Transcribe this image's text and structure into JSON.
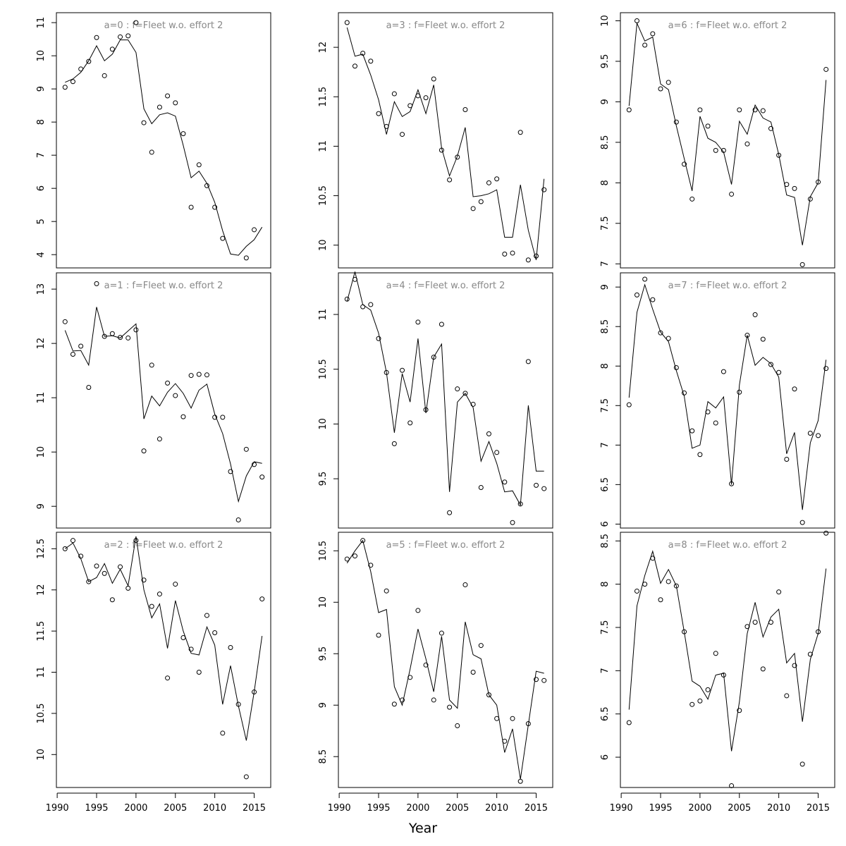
{
  "figure": {
    "xlabel": "Year"
  },
  "chart_data": [
    {
      "type": "scatter",
      "title": "a=0  :  f=Fleet w.o. effort 2",
      "x": [
        1991,
        1992,
        1993,
        1994,
        1995,
        1996,
        1997,
        1998,
        1999,
        2000,
        2001,
        2002,
        2003,
        2004,
        2005,
        2006,
        2007,
        2008,
        2009,
        2010,
        2011,
        2012,
        2013,
        2014,
        2015,
        2016
      ],
      "series": [
        {
          "values": [
            9.05,
            9.22,
            9.6,
            9.83,
            10.55,
            9.4,
            10.2,
            10.57,
            10.6,
            11.0,
            7.98,
            7.09,
            8.45,
            8.79,
            8.58,
            7.65,
            5.43,
            6.71,
            6.08,
            5.43,
            4.49,
            null,
            null,
            3.9,
            4.75,
            null
          ]
        },
        {
          "values": [
            9.2,
            9.3,
            9.5,
            9.85,
            10.3,
            9.85,
            10.05,
            10.48,
            10.48,
            10.1,
            8.4,
            7.95,
            8.22,
            8.28,
            8.18,
            7.3,
            6.32,
            6.52,
            6.15,
            5.58,
            4.72,
            4.02,
            3.98,
            4.25,
            4.45,
            4.83
          ]
        }
      ],
      "ylim": [
        3.6,
        11.3
      ],
      "yticks": [
        4,
        5,
        6,
        7,
        8,
        9,
        10,
        11
      ],
      "xticks": []
    },
    {
      "type": "scatter",
      "title": "a=1  :  f=Fleet w.o. effort 2",
      "x": [
        1991,
        1992,
        1993,
        1994,
        1995,
        1996,
        1997,
        1998,
        1999,
        2000,
        2001,
        2002,
        2003,
        2004,
        2005,
        2006,
        2007,
        2008,
        2009,
        2010,
        2011,
        2012,
        2013,
        2014,
        2015,
        2016
      ],
      "series": [
        {
          "values": [
            12.4,
            11.8,
            11.95,
            11.19,
            13.1,
            12.13,
            12.18,
            12.11,
            12.1,
            12.25,
            10.02,
            11.6,
            10.24,
            11.27,
            11.04,
            10.65,
            11.41,
            11.43,
            11.42,
            10.64,
            10.64,
            9.64,
            8.75,
            10.05,
            9.77,
            9.54
          ]
        },
        {
          "values": [
            12.24,
            11.86,
            11.87,
            11.6,
            12.67,
            12.13,
            12.14,
            12.1,
            12.23,
            12.36,
            10.61,
            11.03,
            10.85,
            11.1,
            11.26,
            11.08,
            10.81,
            11.14,
            11.25,
            10.7,
            10.34,
            9.78,
            9.09,
            9.56,
            9.82,
            9.79
          ]
        }
      ],
      "ylim": [
        8.6,
        13.3
      ],
      "yticks": [
        9,
        10,
        11,
        12,
        13
      ],
      "xticks": []
    },
    {
      "type": "scatter",
      "title": "a=2  :  f=Fleet w.o. effort 2",
      "x": [
        1991,
        1992,
        1993,
        1994,
        1995,
        1996,
        1997,
        1998,
        1999,
        2000,
        2001,
        2002,
        2003,
        2004,
        2005,
        2006,
        2007,
        2008,
        2009,
        2010,
        2011,
        2012,
        2013,
        2014,
        2015,
        2016
      ],
      "series": [
        {
          "values": [
            12.5,
            12.6,
            12.41,
            12.1,
            12.29,
            12.2,
            11.88,
            12.28,
            12.02,
            12.6,
            12.12,
            11.8,
            11.95,
            10.93,
            12.07,
            11.42,
            11.28,
            11.0,
            11.69,
            11.48,
            10.26,
            11.3,
            10.61,
            9.73,
            10.76,
            11.89
          ]
        },
        {
          "values": [
            12.5,
            12.57,
            12.38,
            12.1,
            12.15,
            12.32,
            12.08,
            12.25,
            12.05,
            12.65,
            12.0,
            11.66,
            11.83,
            11.29,
            11.87,
            11.5,
            11.23,
            11.21,
            11.55,
            11.33,
            10.61,
            11.08,
            10.59,
            10.17,
            10.76,
            11.44
          ]
        }
      ],
      "ylim": [
        9.6,
        12.7
      ],
      "yticks": [
        10.0,
        10.5,
        11.0,
        11.5,
        12.0,
        12.5
      ],
      "xticks": [
        1990,
        1995,
        2000,
        2005,
        2010,
        2015
      ]
    },
    {
      "type": "scatter",
      "title": "a=3  :  f=Fleet w.o. effort 2",
      "x": [
        1991,
        1992,
        1993,
        1994,
        1995,
        1996,
        1997,
        1998,
        1999,
        2000,
        2001,
        2002,
        2003,
        2004,
        2005,
        2006,
        2007,
        2008,
        2009,
        2010,
        2011,
        2012,
        2013,
        2014,
        2015,
        2016
      ],
      "series": [
        {
          "values": [
            12.25,
            11.81,
            11.94,
            11.86,
            11.33,
            11.2,
            11.53,
            11.12,
            11.41,
            11.51,
            11.49,
            11.68,
            10.96,
            10.66,
            10.89,
            11.37,
            10.37,
            10.44,
            10.63,
            10.67,
            9.91,
            9.92,
            11.14,
            9.85,
            9.89,
            10.56
          ]
        },
        {
          "values": [
            12.2,
            11.91,
            11.93,
            11.72,
            11.47,
            11.12,
            11.45,
            11.3,
            11.35,
            11.57,
            11.33,
            11.62,
            10.98,
            10.7,
            10.9,
            11.19,
            10.49,
            10.5,
            10.52,
            10.56,
            10.08,
            10.08,
            10.61,
            10.15,
            9.85,
            10.67
          ]
        }
      ],
      "ylim": [
        9.77,
        12.35
      ],
      "yticks": [
        10.0,
        10.5,
        11.0,
        11.5,
        12.0
      ],
      "xticks": []
    },
    {
      "type": "scatter",
      "title": "a=4  :  f=Fleet w.o. effort 2",
      "x": [
        1991,
        1992,
        1993,
        1994,
        1995,
        1996,
        1997,
        1998,
        1999,
        2000,
        2001,
        2002,
        2003,
        2004,
        2005,
        2006,
        2007,
        2008,
        2009,
        2010,
        2011,
        2012,
        2013,
        2014,
        2015,
        2016
      ],
      "series": [
        {
          "values": [
            11.14,
            11.32,
            11.07,
            11.09,
            10.78,
            10.47,
            9.82,
            10.49,
            10.01,
            10.93,
            10.13,
            10.61,
            10.91,
            9.19,
            10.32,
            10.28,
            10.18,
            9.42,
            9.91,
            9.74,
            9.47,
            9.1,
            9.27,
            10.57,
            9.44,
            9.41
          ]
        },
        {
          "values": [
            11.12,
            11.39,
            11.09,
            11.04,
            10.83,
            10.47,
            9.92,
            10.46,
            10.2,
            10.78,
            10.1,
            10.61,
            10.73,
            9.38,
            10.2,
            10.28,
            10.15,
            9.66,
            9.84,
            9.64,
            9.38,
            9.39,
            9.26,
            10.17,
            9.57,
            9.57
          ]
        }
      ],
      "ylim": [
        9.05,
        11.38
      ],
      "yticks": [
        9.5,
        10.0,
        10.5,
        11.0
      ],
      "xticks": []
    },
    {
      "type": "scatter",
      "title": "a=5  :  f=Fleet w.o. effort 2",
      "x": [
        1991,
        1992,
        1993,
        1994,
        1995,
        1996,
        1997,
        1998,
        1999,
        2000,
        2001,
        2002,
        2003,
        2004,
        2005,
        2006,
        2007,
        2008,
        2009,
        2010,
        2011,
        2012,
        2013,
        2014,
        2015,
        2016
      ],
      "series": [
        {
          "values": [
            10.42,
            10.45,
            10.6,
            10.36,
            9.68,
            10.11,
            9.01,
            9.05,
            9.27,
            9.92,
            9.39,
            9.05,
            9.7,
            8.98,
            8.8,
            10.17,
            9.32,
            9.58,
            9.1,
            8.87,
            8.65,
            8.87,
            8.26,
            8.82,
            9.25,
            9.24
          ]
        },
        {
          "values": [
            10.38,
            10.5,
            10.6,
            10.3,
            9.9,
            9.93,
            9.18,
            9.0,
            9.35,
            9.74,
            9.45,
            9.13,
            9.67,
            9.05,
            8.97,
            9.81,
            9.49,
            9.45,
            9.1,
            9.0,
            8.54,
            8.77,
            8.28,
            8.81,
            9.33,
            9.31
          ]
        }
      ],
      "ylim": [
        8.2,
        10.68
      ],
      "yticks": [
        8.5,
        9.0,
        9.5,
        10.0,
        10.5
      ],
      "xticks": [
        1990,
        1995,
        2000,
        2005,
        2010,
        2015
      ]
    },
    {
      "type": "scatter",
      "title": "a=6  :  f=Fleet w.o. effort 2",
      "x": [
        1991,
        1992,
        1993,
        1994,
        1995,
        1996,
        1997,
        1998,
        1999,
        2000,
        2001,
        2002,
        2003,
        2004,
        2005,
        2006,
        2007,
        2008,
        2009,
        2010,
        2011,
        2012,
        2013,
        2014,
        2015,
        2016
      ],
      "series": [
        {
          "values": [
            8.9,
            10.0,
            9.7,
            9.84,
            9.16,
            9.24,
            8.75,
            8.23,
            7.8,
            8.9,
            8.7,
            8.4,
            8.4,
            7.86,
            8.9,
            8.48,
            8.9,
            8.89,
            8.67,
            8.34,
            7.98,
            7.93,
            6.99,
            7.8,
            8.01,
            9.4
          ]
        },
        {
          "values": [
            8.95,
            9.97,
            9.75,
            9.8,
            9.22,
            9.15,
            8.7,
            8.3,
            7.9,
            8.82,
            8.55,
            8.5,
            8.38,
            7.98,
            8.76,
            8.6,
            8.96,
            8.8,
            8.75,
            8.35,
            7.85,
            7.82,
            7.23,
            7.83,
            8.0,
            9.27
          ]
        }
      ],
      "ylim": [
        6.95,
        10.1
      ],
      "yticks": [
        7.0,
        7.5,
        8.0,
        8.5,
        9.0,
        9.5,
        10.0
      ],
      "xticks": []
    },
    {
      "type": "scatter",
      "title": "a=7  :  f=Fleet w.o. effort 2",
      "x": [
        1991,
        1992,
        1993,
        1994,
        1995,
        1996,
        1997,
        1998,
        1999,
        2000,
        2001,
        2002,
        2003,
        2004,
        2005,
        2006,
        2007,
        2008,
        2009,
        2010,
        2011,
        2012,
        2013,
        2014,
        2015,
        2016
      ],
      "series": [
        {
          "values": [
            7.51,
            8.9,
            9.1,
            8.84,
            8.42,
            8.35,
            7.98,
            7.66,
            7.18,
            6.88,
            7.42,
            7.28,
            7.93,
            6.51,
            7.67,
            8.39,
            8.65,
            8.34,
            8.02,
            7.92,
            6.82,
            7.71,
            6.02,
            7.15,
            7.12,
            7.97
          ]
        },
        {
          "values": [
            7.6,
            8.68,
            9.03,
            8.72,
            8.43,
            8.31,
            7.94,
            7.62,
            6.96,
            7.0,
            7.55,
            7.47,
            7.61,
            6.5,
            7.76,
            8.39,
            8.01,
            8.11,
            8.03,
            7.86,
            6.89,
            7.16,
            6.18,
            7.03,
            7.31,
            8.08
          ]
        }
      ],
      "ylim": [
        5.95,
        9.18
      ],
      "yticks": [
        6.0,
        6.5,
        7.0,
        7.5,
        8.0,
        8.5,
        9.0
      ],
      "xticks": []
    },
    {
      "type": "scatter",
      "title": "a=8  :  f=Fleet w.o. effort 2",
      "x": [
        1991,
        1992,
        1993,
        1994,
        1995,
        1996,
        1997,
        1998,
        1999,
        2000,
        2001,
        2002,
        2003,
        2004,
        2005,
        2006,
        2007,
        2008,
        2009,
        2010,
        2011,
        2012,
        2013,
        2014,
        2015,
        2016
      ],
      "series": [
        {
          "values": [
            6.4,
            7.92,
            8.0,
            8.3,
            7.82,
            8.03,
            7.98,
            7.45,
            6.61,
            6.65,
            6.78,
            7.2,
            6.95,
            5.67,
            6.54,
            7.51,
            7.56,
            7.02,
            7.56,
            7.91,
            6.71,
            7.06,
            5.92,
            7.19,
            7.45,
            8.59
          ]
        },
        {
          "values": [
            6.55,
            7.75,
            8.1,
            8.38,
            8.01,
            8.17,
            7.98,
            7.45,
            6.88,
            6.82,
            6.67,
            6.95,
            6.97,
            6.07,
            6.64,
            7.43,
            7.79,
            7.39,
            7.62,
            7.71,
            7.09,
            7.2,
            6.41,
            7.13,
            7.43,
            8.18
          ]
        }
      ],
      "ylim": [
        5.65,
        8.6
      ],
      "yticks": [
        6.0,
        6.5,
        7.0,
        7.5,
        8.0,
        8.5
      ],
      "xticks": [
        1990,
        1995,
        2000,
        2005,
        2010,
        2015
      ]
    }
  ]
}
